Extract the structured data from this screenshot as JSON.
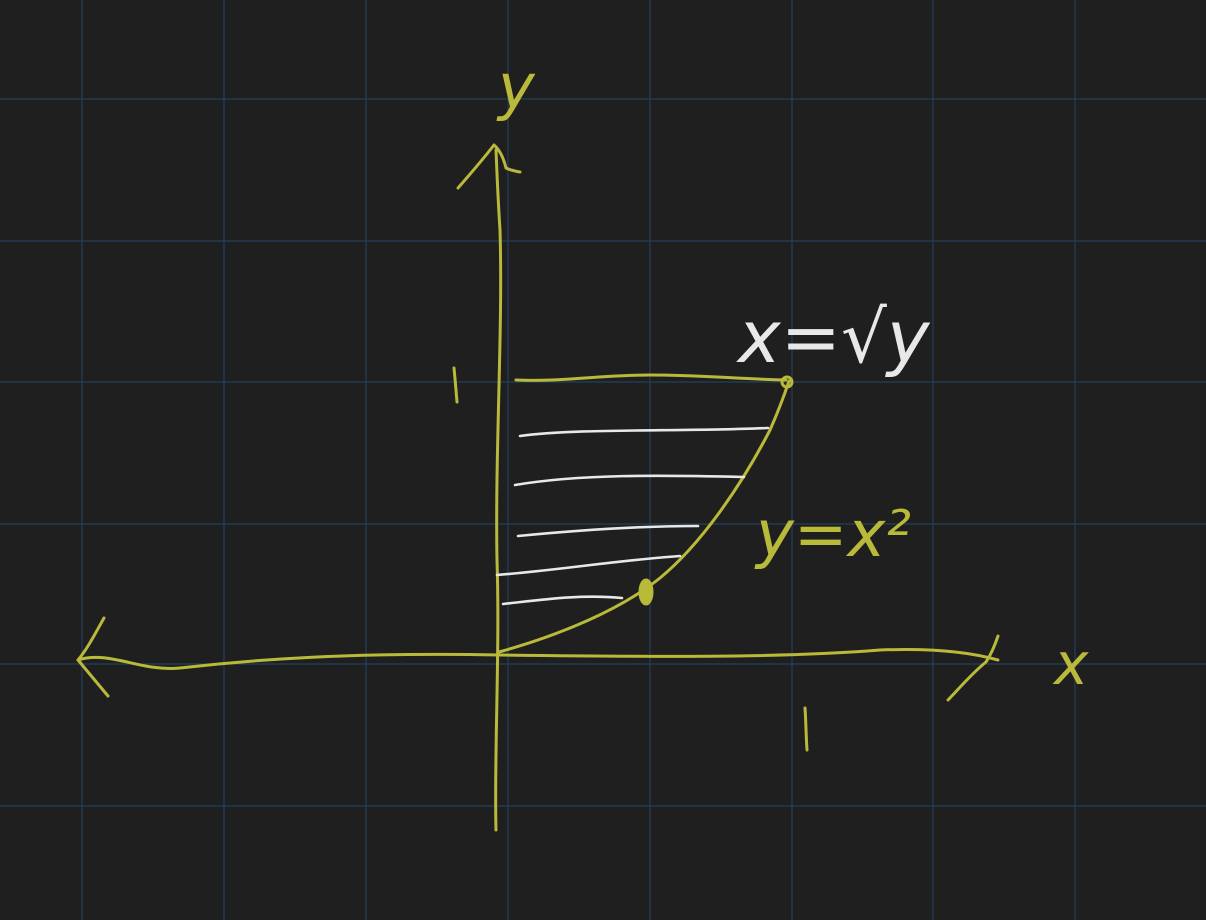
{
  "colors": {
    "background": "#1f1f1f",
    "grid": "#22405e",
    "ink_yellow": "#b9b93a",
    "ink_white": "#e8e8e8"
  },
  "labels": {
    "y_axis": "y",
    "x_axis": "x",
    "tick_y_one": "1",
    "tick_x_one": "1",
    "curve_white": "x=√y",
    "curve_yellow": "y=x²"
  }
}
